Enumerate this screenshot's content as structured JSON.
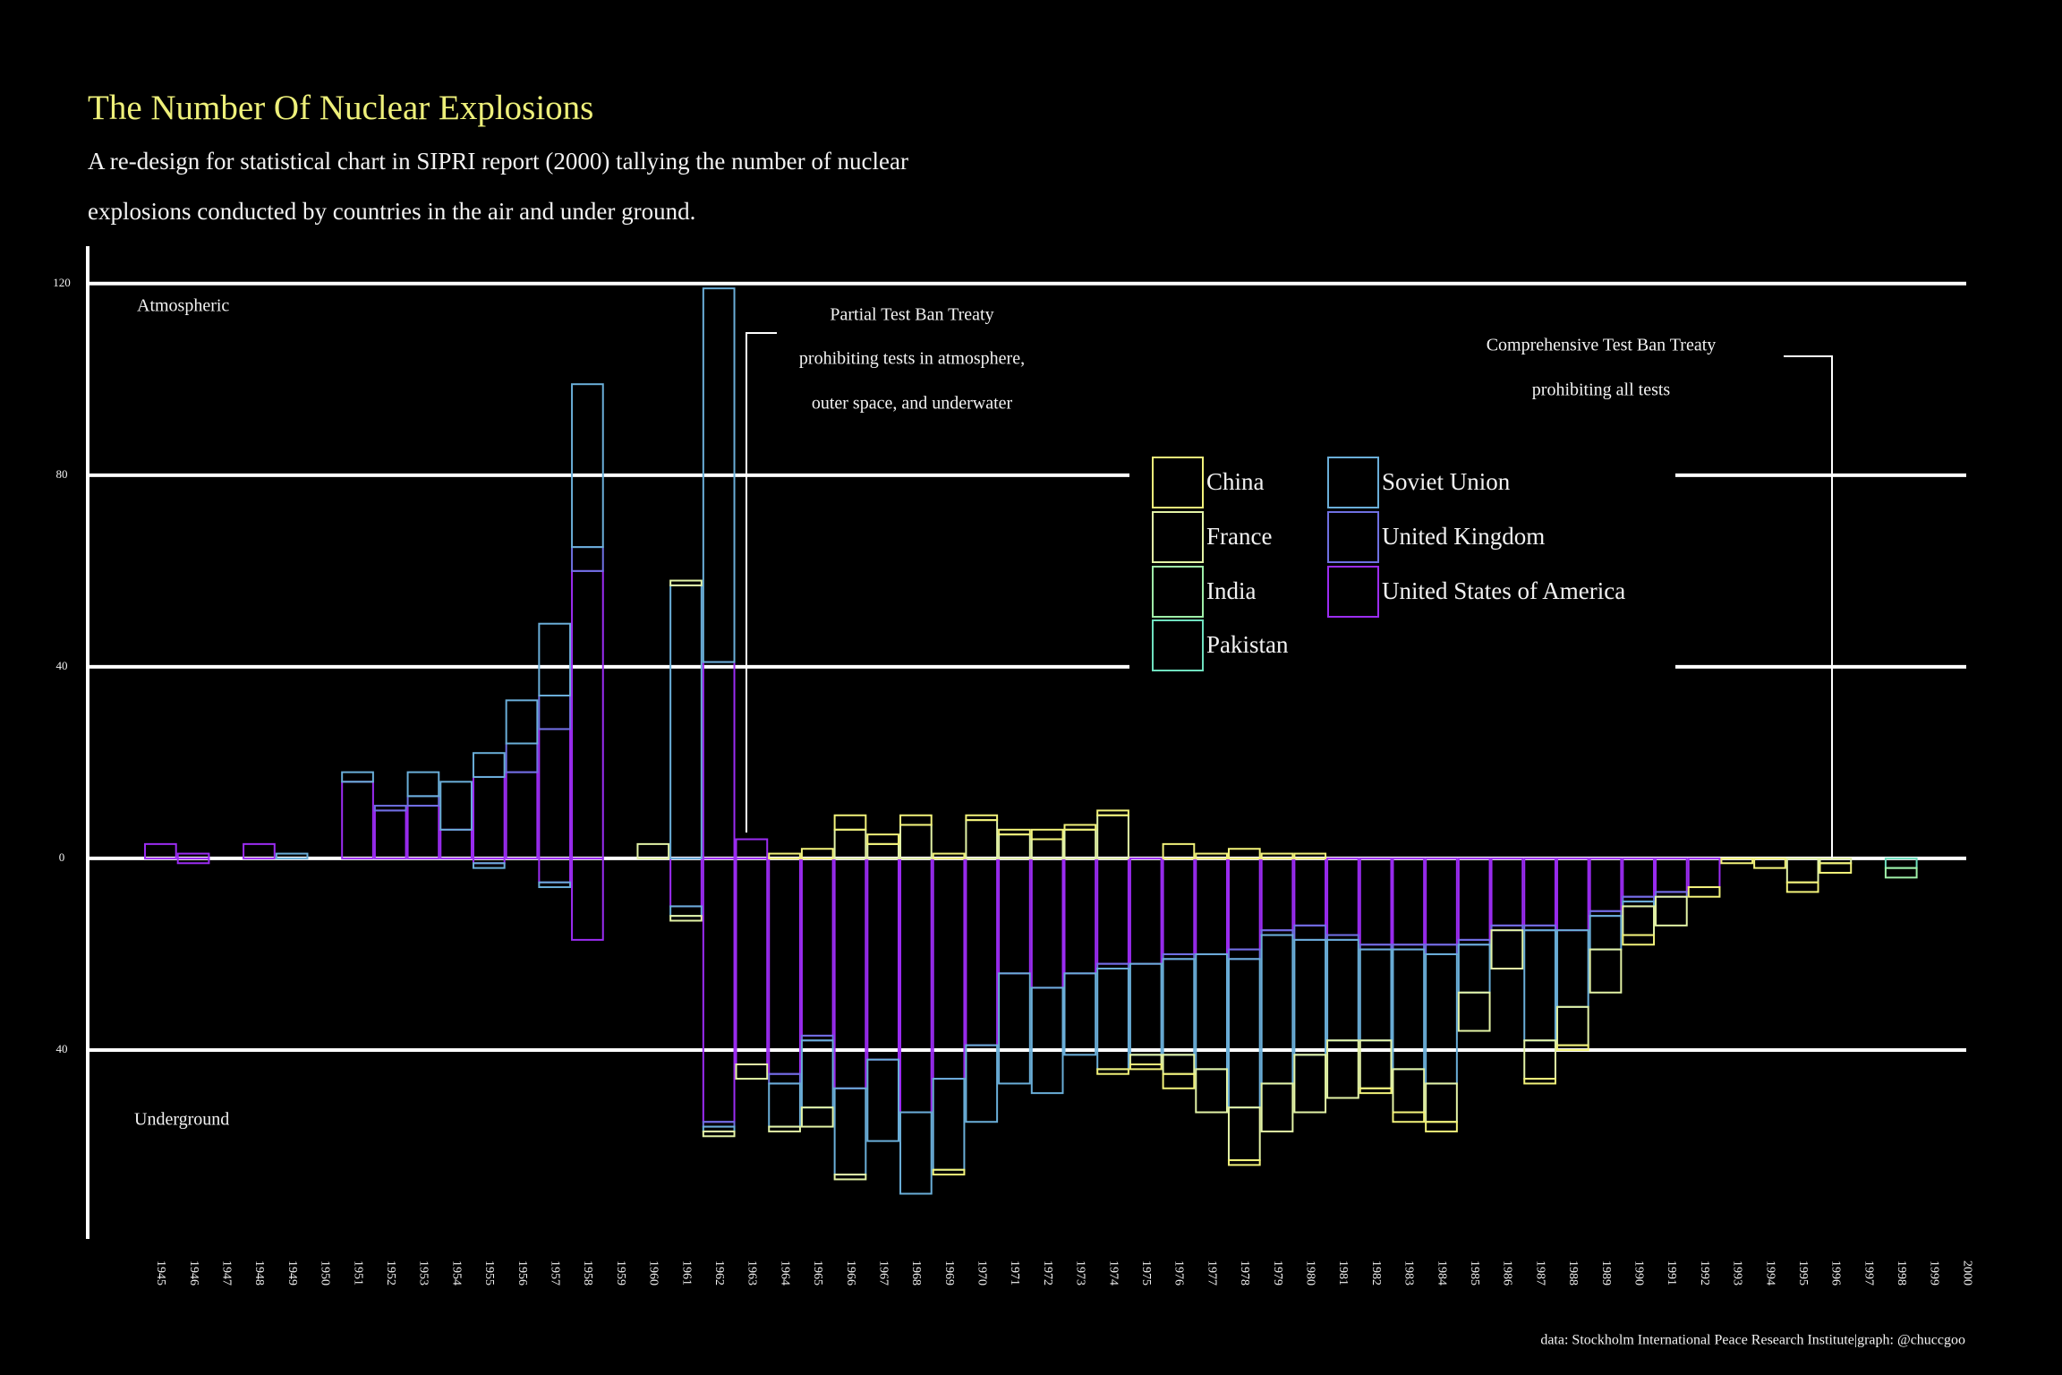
{
  "chart_data": {
    "type": "bar",
    "title": "The Number Of Nuclear Explosions",
    "subtitle": "A re-design for statistical chart in SIPRI report (2000) tallying the number of nuclear explosions conducted by countries in the air and under ground.",
    "annotations": {
      "atmospheric": "Atmospheric",
      "underground": "Underground",
      "ptbt": [
        "Partial Test Ban Treaty",
        "prohibiting tests in atmosphere,",
        "outer space, and underwater"
      ],
      "ctbt": [
        "Comprehensive Test Ban Treaty",
        "prohibiting all tests"
      ],
      "source": "data: Stockholm International Peace Research Institute|graph: @chuccgoo"
    },
    "categories": [
      "1945",
      "1946",
      "1947",
      "1948",
      "1949",
      "1950",
      "1951",
      "1952",
      "1953",
      "1954",
      "1955",
      "1956",
      "1957",
      "1958",
      "1959",
      "1960",
      "1961",
      "1962",
      "1963",
      "1964",
      "1965",
      "1966",
      "1967",
      "1968",
      "1969",
      "1970",
      "1971",
      "1972",
      "1973",
      "1974",
      "1975",
      "1976",
      "1977",
      "1978",
      "1979",
      "1980",
      "1981",
      "1982",
      "1983",
      "1984",
      "1985",
      "1986",
      "1987",
      "1988",
      "1989",
      "1990",
      "1991",
      "1992",
      "1993",
      "1994",
      "1995",
      "1996",
      "1997",
      "1998",
      "1999",
      "2000"
    ],
    "ylim": [
      -80,
      128
    ],
    "yticks": [
      120,
      80,
      40,
      0,
      {
        "value": -40,
        "label": "40"
      }
    ],
    "grid": true,
    "stacked": true,
    "series": [
      {
        "name": "China",
        "color": "#f2f27a",
        "values": [
          0,
          0,
          0,
          0,
          0,
          0,
          0,
          0,
          0,
          0,
          0,
          0,
          0,
          0,
          0,
          0,
          0,
          0,
          0,
          1,
          2,
          3,
          2,
          2,
          1,
          1,
          1,
          2,
          1,
          1,
          0,
          3,
          1,
          2,
          1,
          1,
          0,
          0,
          0,
          0,
          0,
          0,
          0,
          0,
          0,
          0,
          0,
          0,
          0,
          0,
          0,
          0,
          0,
          0,
          0,
          0
        ],
        "underground": [
          0,
          0,
          0,
          0,
          0,
          0,
          0,
          0,
          0,
          0,
          0,
          0,
          0,
          0,
          0,
          0,
          0,
          0,
          0,
          0,
          0,
          0,
          0,
          0,
          -1,
          0,
          0,
          0,
          0,
          -1,
          -1,
          -3,
          0,
          -1,
          0,
          0,
          0,
          -1,
          -2,
          -2,
          0,
          0,
          -1,
          -1,
          0,
          -2,
          0,
          -2,
          -1,
          -2,
          -2,
          -2,
          0,
          0,
          0,
          0
        ]
      },
      {
        "name": "France",
        "color": "#e3f3a6",
        "values": [
          0,
          0,
          0,
          0,
          0,
          0,
          0,
          0,
          0,
          0,
          0,
          0,
          0,
          0,
          0,
          3,
          1,
          0,
          0,
          0,
          0,
          6,
          3,
          7,
          0,
          8,
          5,
          4,
          6,
          9,
          0,
          0,
          0,
          0,
          0,
          0,
          0,
          0,
          0,
          0,
          0,
          0,
          0,
          0,
          0,
          0,
          0,
          0,
          0,
          0,
          0,
          0,
          0,
          0,
          0,
          0
        ],
        "underground": [
          0,
          0,
          0,
          0,
          0,
          0,
          0,
          0,
          0,
          0,
          0,
          0,
          0,
          0,
          0,
          0,
          -1,
          -1,
          -3,
          -1,
          -4,
          -1,
          0,
          0,
          0,
          0,
          0,
          0,
          0,
          0,
          -2,
          -4,
          -9,
          -11,
          -10,
          -12,
          -12,
          -10,
          -9,
          -8,
          -8,
          -8,
          -8,
          -8,
          -9,
          -6,
          -6,
          0,
          0,
          0,
          -5,
          -1,
          0,
          0,
          0,
          0
        ]
      },
      {
        "name": "India",
        "color": "#9fefa8",
        "values": [
          0,
          0,
          0,
          0,
          0,
          0,
          0,
          0,
          0,
          0,
          0,
          0,
          0,
          0,
          0,
          0,
          0,
          0,
          0,
          0,
          0,
          0,
          0,
          0,
          0,
          0,
          0,
          0,
          0,
          0,
          0,
          0,
          0,
          0,
          0,
          0,
          0,
          0,
          0,
          0,
          0,
          0,
          0,
          0,
          0,
          0,
          0,
          0,
          0,
          0,
          0,
          0,
          0,
          0,
          0,
          0
        ],
        "underground": [
          0,
          0,
          0,
          0,
          0,
          0,
          0,
          0,
          0,
          0,
          0,
          0,
          0,
          0,
          0,
          0,
          0,
          0,
          0,
          0,
          0,
          0,
          0,
          0,
          0,
          0,
          0,
          0,
          0,
          0,
          0,
          0,
          0,
          0,
          0,
          0,
          0,
          0,
          0,
          0,
          0,
          0,
          0,
          0,
          0,
          0,
          0,
          0,
          0,
          0,
          0,
          0,
          0,
          -2,
          0,
          0
        ]
      },
      {
        "name": "Pakistan",
        "color": "#6fe0bf",
        "values": [
          0,
          0,
          0,
          0,
          0,
          0,
          0,
          0,
          0,
          0,
          0,
          0,
          0,
          0,
          0,
          0,
          0,
          0,
          0,
          0,
          0,
          0,
          0,
          0,
          0,
          0,
          0,
          0,
          0,
          0,
          0,
          0,
          0,
          0,
          0,
          0,
          0,
          0,
          0,
          0,
          0,
          0,
          0,
          0,
          0,
          0,
          0,
          0,
          0,
          0,
          0,
          0,
          0,
          0,
          0,
          0
        ],
        "underground": [
          0,
          0,
          0,
          0,
          0,
          0,
          0,
          0,
          0,
          0,
          0,
          0,
          0,
          0,
          0,
          0,
          0,
          0,
          0,
          0,
          0,
          0,
          0,
          0,
          0,
          0,
          0,
          0,
          0,
          0,
          0,
          0,
          0,
          0,
          0,
          0,
          0,
          0,
          0,
          0,
          0,
          0,
          0,
          0,
          0,
          0,
          0,
          0,
          0,
          0,
          0,
          0,
          0,
          -2,
          0,
          0
        ]
      },
      {
        "name": "Soviet Union",
        "color": "#6aaed8",
        "values": [
          0,
          0,
          0,
          0,
          1,
          0,
          2,
          0,
          5,
          10,
          5,
          9,
          15,
          34,
          0,
          0,
          57,
          78,
          0,
          0,
          0,
          0,
          0,
          0,
          0,
          0,
          0,
          0,
          0,
          0,
          0,
          0,
          0,
          0,
          0,
          0,
          0,
          0,
          0,
          0,
          0,
          0,
          0,
          0,
          0,
          0,
          0,
          0,
          0,
          0,
          0,
          0,
          0,
          0,
          0,
          0
        ],
        "underground": [
          0,
          0,
          0,
          0,
          0,
          0,
          0,
          0,
          0,
          0,
          -1,
          0,
          -1,
          0,
          0,
          0,
          -2,
          -1,
          0,
          -9,
          -14,
          -18,
          -17,
          -17,
          -19,
          -16,
          -23,
          -22,
          -17,
          -21,
          -19,
          -20,
          -24,
          -31,
          -31,
          -24,
          -21,
          -19,
          -25,
          -27,
          -10,
          0,
          -23,
          -16,
          -7,
          -1,
          0,
          0,
          0,
          0,
          0,
          0,
          0,
          0,
          0,
          0
        ]
      },
      {
        "name": "United Kingdom",
        "color": "#6f70e2",
        "values": [
          0,
          0,
          0,
          0,
          0,
          0,
          0,
          1,
          2,
          0,
          0,
          6,
          7,
          5,
          0,
          0,
          0,
          0,
          0,
          0,
          0,
          0,
          0,
          0,
          0,
          0,
          0,
          0,
          0,
          0,
          0,
          0,
          0,
          0,
          0,
          0,
          0,
          0,
          0,
          0,
          0,
          0,
          0,
          0,
          0,
          0,
          0,
          0,
          0,
          0,
          0,
          0,
          0,
          0,
          0,
          0
        ],
        "underground": [
          0,
          0,
          0,
          0,
          0,
          0,
          0,
          0,
          0,
          0,
          0,
          0,
          0,
          0,
          0,
          0,
          0,
          -1,
          0,
          -2,
          -1,
          0,
          0,
          0,
          0,
          0,
          0,
          0,
          0,
          -1,
          0,
          -1,
          0,
          -2,
          -1,
          -3,
          -1,
          -1,
          -1,
          -2,
          -1,
          -1,
          -1,
          0,
          -1,
          -1,
          -1,
          0,
          0,
          0,
          0,
          0,
          0,
          0,
          0,
          0
        ]
      },
      {
        "name": "United States of America",
        "color": "#9b2cf2",
        "values": [
          3,
          1,
          0,
          3,
          0,
          0,
          16,
          10,
          11,
          6,
          17,
          18,
          27,
          60,
          0,
          0,
          0,
          41,
          4,
          0,
          0,
          0,
          0,
          0,
          0,
          0,
          0,
          0,
          0,
          0,
          0,
          0,
          0,
          0,
          0,
          0,
          0,
          0,
          0,
          0,
          0,
          0,
          0,
          0,
          0,
          0,
          0,
          0,
          0,
          0,
          0,
          0,
          0,
          0,
          0,
          0
        ],
        "underground": [
          0,
          -1,
          0,
          0,
          0,
          0,
          0,
          0,
          0,
          0,
          -1,
          0,
          -5,
          -17,
          0,
          0,
          -10,
          -55,
          -43,
          -45,
          -37,
          -48,
          -42,
          -53,
          -46,
          -39,
          -24,
          -27,
          -24,
          -22,
          -22,
          -20,
          -20,
          -19,
          -15,
          -14,
          -16,
          -18,
          -18,
          -18,
          -17,
          -14,
          -14,
          -15,
          -11,
          -8,
          -7,
          -6,
          0,
          0,
          0,
          0,
          0,
          0,
          0,
          0
        ]
      }
    ]
  }
}
